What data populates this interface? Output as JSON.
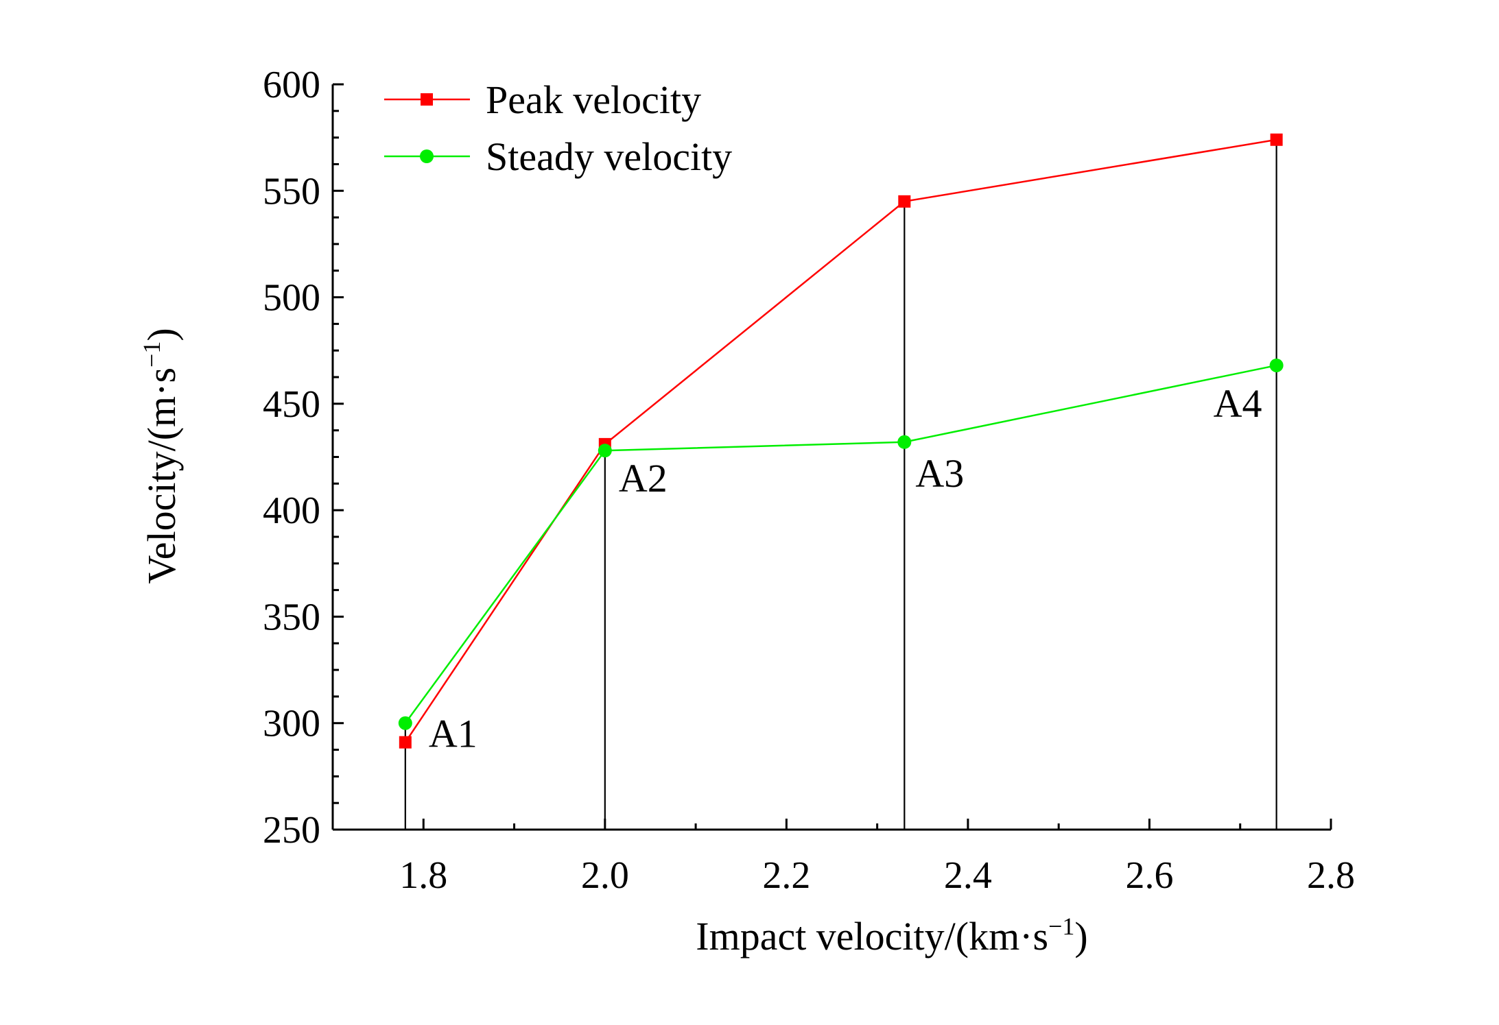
{
  "chart_data": {
    "type": "line",
    "xlabel": {
      "main": "Impact velocity/(km·s",
      "sup": "−1",
      "end": ")"
    },
    "ylabel": {
      "main": "Velocity/(m·s",
      "sup": "−1",
      "end": ")"
    },
    "xlim": [
      1.7,
      2.8
    ],
    "ylim": [
      250,
      600
    ],
    "x_ticks": [
      "1.8",
      "2.0",
      "2.2",
      "2.4",
      "2.6",
      "2.8"
    ],
    "y_ticks": [
      "250",
      "300",
      "350",
      "400",
      "450",
      "500",
      "550",
      "600"
    ],
    "x": [
      1.78,
      2.0,
      2.33,
      2.74
    ],
    "series": [
      {
        "name": "Peak velocity",
        "color": "#ff0000",
        "marker": "square",
        "values": [
          291,
          431,
          545,
          574
        ]
      },
      {
        "name": "Steady velocity",
        "color": "#00ee00",
        "marker": "circle",
        "values": [
          300,
          428,
          432,
          468
        ]
      }
    ],
    "point_labels": [
      "A1",
      "A2",
      "A3",
      "A4"
    ],
    "legend_position": "top-left",
    "grid": false
  }
}
